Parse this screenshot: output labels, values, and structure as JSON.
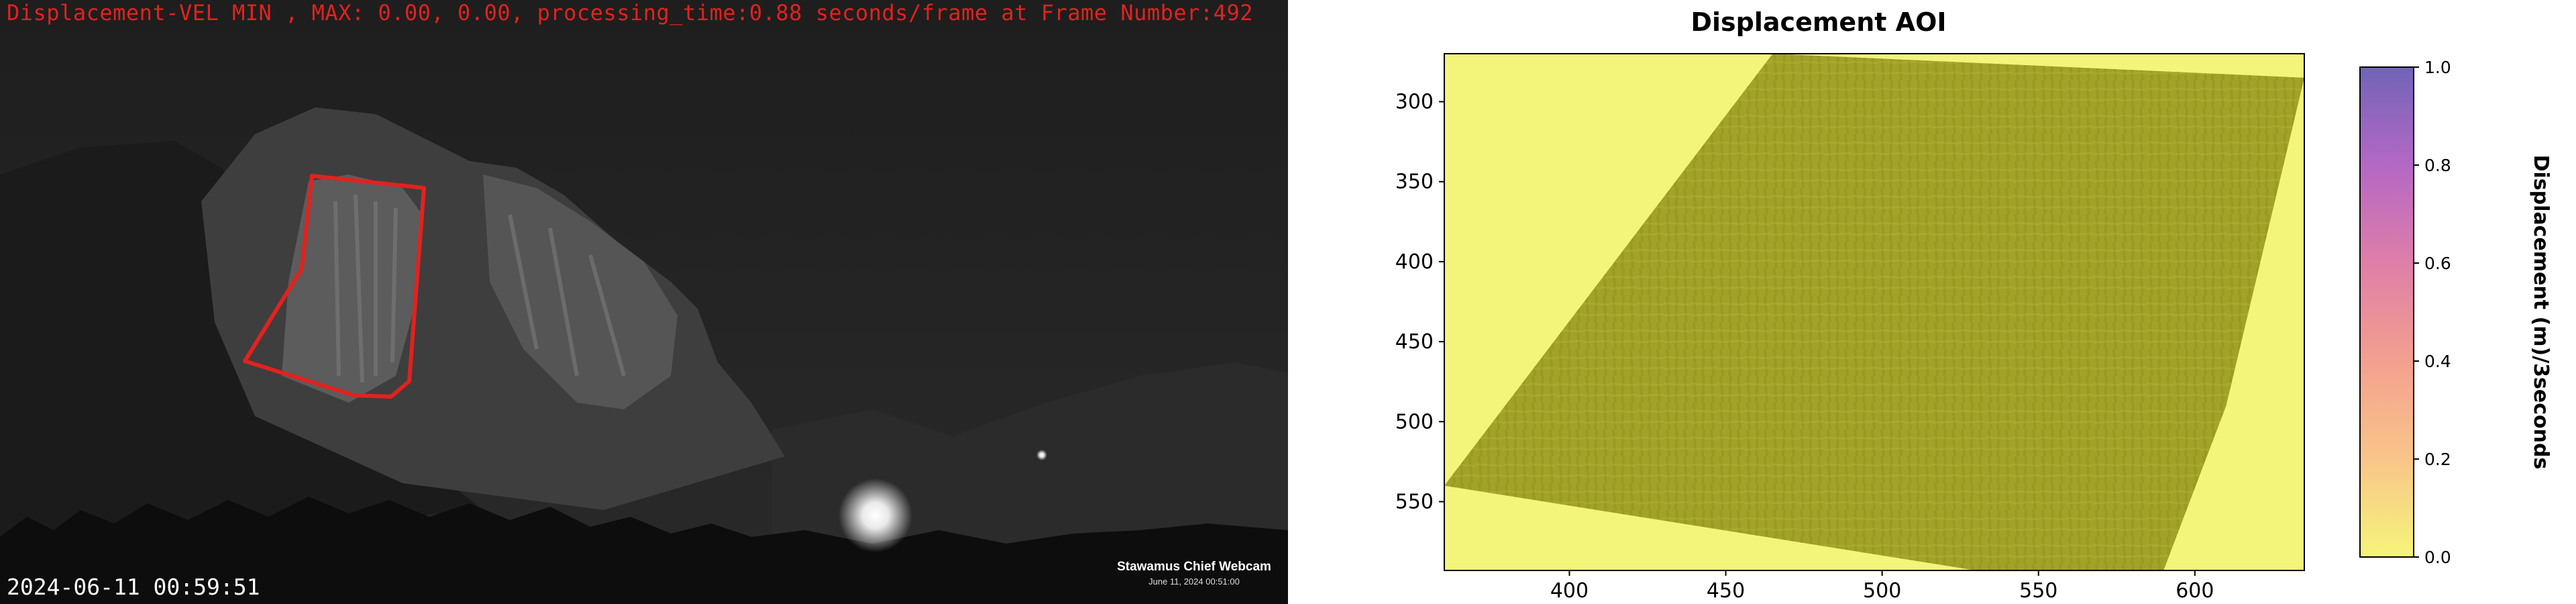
{
  "webcam": {
    "overlay_text": "Displacement-VEL MIN , MAX: 0.00, 0.00, processing_time:0.88 seconds/frame at Frame Number:492",
    "timestamp": "2024-06-11 00:59:51",
    "logo_title": "Stawamus Chief Webcam",
    "logo_date": "June 11, 2024 00:51:00",
    "roi_color": "#e2221f"
  },
  "chart_data": {
    "type": "heatmap",
    "title": "Displacement AOI",
    "xlabel": "",
    "ylabel": "",
    "xlim": [
      360,
      635
    ],
    "ylim": [
      593,
      270
    ],
    "x_ticks": [
      400,
      450,
      500,
      550,
      600
    ],
    "y_ticks": [
      300,
      350,
      400,
      450,
      500,
      550
    ],
    "colormap": "plasma_r (faded)",
    "background_color": "#f2f57a",
    "region_color": "#a2a228",
    "region_polygon": [
      [
        360,
        540
      ],
      [
        465,
        270
      ],
      [
        635,
        285
      ],
      [
        610,
        490
      ],
      [
        590,
        593
      ],
      [
        530,
        593
      ]
    ],
    "values_min": 0.0,
    "values_max": 0.0,
    "colorbar": {
      "label": "Displacement (m)/3seconds",
      "ticks": [
        0.0,
        0.2,
        0.4,
        0.6,
        0.8,
        1.0
      ],
      "tick_labels": [
        "0.0",
        "0.2",
        "0.4",
        "0.6",
        "0.8",
        "1.0"
      ],
      "range": [
        0.0,
        1.0
      ],
      "colors": [
        "#f5f57a",
        "#f9c58a",
        "#f3a08f",
        "#df7ea8",
        "#b468c4",
        "#7064b8"
      ]
    }
  }
}
